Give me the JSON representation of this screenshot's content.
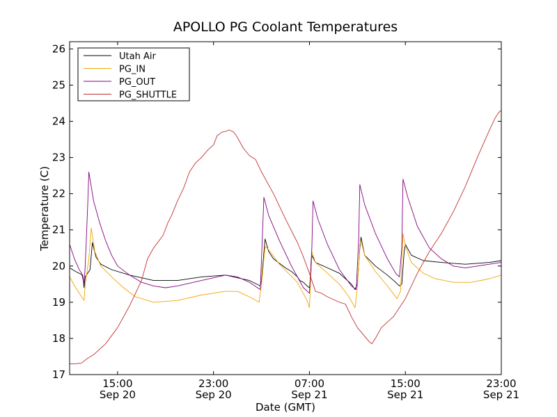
{
  "chart_data": {
    "type": "line",
    "title": "APOLLO PG Coolant Temperatures",
    "xlabel": "Date (GMT)",
    "ylabel": "Temperature (C)",
    "xlim": [
      11.0,
      47.0
    ],
    "ylim": [
      17,
      26.2
    ],
    "yticks": [
      {
        "value": 17,
        "label": "17"
      },
      {
        "value": 18,
        "label": "18"
      },
      {
        "value": 19,
        "label": "19"
      },
      {
        "value": 20,
        "label": "20"
      },
      {
        "value": 21,
        "label": "21"
      },
      {
        "value": 22,
        "label": "22"
      },
      {
        "value": 23,
        "label": "23"
      },
      {
        "value": 24,
        "label": "24"
      },
      {
        "value": 25,
        "label": "25"
      },
      {
        "value": 26,
        "label": "26"
      }
    ],
    "xticks": [
      {
        "value": 15,
        "time": "15:00",
        "date": "Sep 20"
      },
      {
        "value": 23,
        "time": "23:00",
        "date": "Sep 20"
      },
      {
        "value": 31,
        "time": "07:00",
        "date": "Sep 21"
      },
      {
        "value": 39,
        "time": "15:00",
        "date": "Sep 21"
      },
      {
        "value": 47,
        "time": "23:00",
        "date": "Sep 21"
      }
    ],
    "legend_position": "top-left",
    "series": [
      {
        "name": "Utah Air",
        "color": "#000000",
        "points": [
          [
            11.0,
            19.95
          ],
          [
            11.5,
            19.85
          ],
          [
            12.1,
            19.75
          ],
          [
            12.2,
            19.4
          ],
          [
            12.3,
            19.7
          ],
          [
            12.7,
            19.9
          ],
          [
            12.9,
            20.65
          ],
          [
            13.2,
            20.25
          ],
          [
            13.6,
            20.05
          ],
          [
            14.5,
            19.9
          ],
          [
            16.0,
            19.75
          ],
          [
            18.0,
            19.6
          ],
          [
            20.0,
            19.6
          ],
          [
            22.0,
            19.7
          ],
          [
            24.0,
            19.75
          ],
          [
            26.0,
            19.6
          ],
          [
            26.9,
            19.45
          ],
          [
            27.0,
            19.6
          ],
          [
            27.3,
            20.75
          ],
          [
            27.6,
            20.4
          ],
          [
            28.0,
            20.2
          ],
          [
            29.0,
            19.95
          ],
          [
            29.5,
            19.85
          ],
          [
            30.0,
            19.7
          ],
          [
            30.2,
            19.6
          ],
          [
            30.5,
            19.55
          ],
          [
            30.8,
            19.45
          ],
          [
            31.0,
            19.4
          ],
          [
            31.1,
            19.65
          ],
          [
            31.2,
            20.3
          ],
          [
            31.5,
            20.1
          ],
          [
            32.5,
            19.95
          ],
          [
            33.5,
            19.8
          ],
          [
            34.0,
            19.65
          ],
          [
            34.5,
            19.5
          ],
          [
            34.8,
            19.35
          ],
          [
            35.0,
            19.5
          ],
          [
            35.2,
            20.5
          ],
          [
            35.3,
            20.8
          ],
          [
            35.6,
            20.3
          ],
          [
            36.5,
            20.0
          ],
          [
            37.5,
            19.75
          ],
          [
            38.2,
            19.55
          ],
          [
            38.5,
            19.45
          ],
          [
            38.7,
            19.5
          ],
          [
            38.9,
            20.4
          ],
          [
            39.0,
            20.6
          ],
          [
            39.5,
            20.3
          ],
          [
            40.5,
            20.15
          ],
          [
            42.0,
            20.1
          ],
          [
            44.0,
            20.05
          ],
          [
            46.0,
            20.1
          ],
          [
            47.0,
            20.15
          ]
        ]
      },
      {
        "name": "PG_IN",
        "color": "#f0a500",
        "points": [
          [
            11.0,
            19.7
          ],
          [
            11.5,
            19.4
          ],
          [
            12.2,
            19.05
          ],
          [
            12.3,
            19.5
          ],
          [
            12.6,
            20.2
          ],
          [
            12.8,
            21.05
          ],
          [
            13.1,
            20.4
          ],
          [
            13.6,
            20.0
          ],
          [
            14.5,
            19.7
          ],
          [
            15.5,
            19.4
          ],
          [
            16.5,
            19.15
          ],
          [
            18.0,
            19.0
          ],
          [
            20.0,
            19.05
          ],
          [
            22.0,
            19.2
          ],
          [
            24.0,
            19.3
          ],
          [
            25.0,
            19.3
          ],
          [
            26.0,
            19.15
          ],
          [
            26.8,
            19.0
          ],
          [
            27.0,
            19.5
          ],
          [
            27.3,
            20.55
          ],
          [
            27.6,
            20.45
          ],
          [
            28.5,
            20.05
          ],
          [
            30.0,
            19.55
          ],
          [
            30.8,
            19.05
          ],
          [
            31.0,
            18.85
          ],
          [
            31.1,
            19.6
          ],
          [
            31.2,
            20.4
          ],
          [
            31.5,
            20.1
          ],
          [
            32.5,
            19.8
          ],
          [
            33.5,
            19.5
          ],
          [
            34.3,
            19.15
          ],
          [
            34.8,
            18.85
          ],
          [
            35.0,
            19.4
          ],
          [
            35.2,
            20.6
          ],
          [
            35.3,
            20.7
          ],
          [
            35.6,
            20.3
          ],
          [
            36.5,
            19.85
          ],
          [
            37.5,
            19.45
          ],
          [
            38.3,
            19.1
          ],
          [
            38.6,
            19.3
          ],
          [
            38.8,
            20.9
          ],
          [
            39.0,
            20.55
          ],
          [
            39.5,
            20.1
          ],
          [
            40.5,
            19.8
          ],
          [
            41.5,
            19.65
          ],
          [
            43.0,
            19.55
          ],
          [
            44.5,
            19.55
          ],
          [
            46.0,
            19.65
          ],
          [
            47.0,
            19.75
          ]
        ]
      },
      {
        "name": "PG_OUT",
        "color": "#800080",
        "points": [
          [
            11.0,
            20.6
          ],
          [
            11.4,
            20.2
          ],
          [
            11.8,
            19.9
          ],
          [
            12.0,
            19.8
          ],
          [
            12.2,
            19.5
          ],
          [
            12.3,
            20.0
          ],
          [
            12.5,
            21.6
          ],
          [
            12.6,
            22.6
          ],
          [
            13.0,
            21.8
          ],
          [
            13.5,
            21.2
          ],
          [
            14.0,
            20.7
          ],
          [
            14.5,
            20.3
          ],
          [
            15.0,
            20.0
          ],
          [
            16.0,
            19.75
          ],
          [
            17.0,
            19.55
          ],
          [
            18.0,
            19.45
          ],
          [
            19.0,
            19.4
          ],
          [
            20.0,
            19.45
          ],
          [
            22.0,
            19.6
          ],
          [
            24.0,
            19.75
          ],
          [
            25.0,
            19.7
          ],
          [
            26.0,
            19.55
          ],
          [
            26.9,
            19.35
          ],
          [
            27.0,
            20.2
          ],
          [
            27.2,
            21.9
          ],
          [
            27.6,
            21.4
          ],
          [
            28.5,
            20.7
          ],
          [
            29.5,
            20.0
          ],
          [
            30.5,
            19.4
          ],
          [
            31.0,
            19.25
          ],
          [
            31.2,
            20.5
          ],
          [
            31.3,
            21.8
          ],
          [
            31.7,
            21.3
          ],
          [
            32.5,
            20.6
          ],
          [
            33.5,
            19.9
          ],
          [
            34.5,
            19.45
          ],
          [
            34.9,
            19.35
          ],
          [
            35.1,
            20.7
          ],
          [
            35.2,
            22.25
          ],
          [
            35.6,
            21.7
          ],
          [
            36.5,
            20.9
          ],
          [
            37.5,
            20.2
          ],
          [
            38.2,
            19.8
          ],
          [
            38.5,
            19.7
          ],
          [
            38.7,
            20.5
          ],
          [
            38.8,
            22.4
          ],
          [
            39.2,
            21.9
          ],
          [
            40.0,
            21.1
          ],
          [
            41.0,
            20.5
          ],
          [
            42.0,
            20.2
          ],
          [
            43.0,
            20.0
          ],
          [
            44.0,
            19.95
          ],
          [
            45.0,
            20.0
          ],
          [
            46.0,
            20.05
          ],
          [
            47.0,
            20.1
          ]
        ]
      },
      {
        "name": "PG_SHUTTLE",
        "color": "#c03030",
        "points": [
          [
            11.0,
            17.3
          ],
          [
            11.5,
            17.3
          ],
          [
            12.0,
            17.32
          ],
          [
            12.5,
            17.45
          ],
          [
            13.0,
            17.55
          ],
          [
            14.0,
            17.85
          ],
          [
            15.0,
            18.3
          ],
          [
            16.0,
            18.9
          ],
          [
            17.0,
            19.6
          ],
          [
            17.5,
            20.2
          ],
          [
            18.0,
            20.5
          ],
          [
            18.8,
            20.85
          ],
          [
            19.2,
            21.2
          ],
          [
            19.5,
            21.4
          ],
          [
            20.0,
            21.8
          ],
          [
            20.5,
            22.15
          ],
          [
            21.0,
            22.6
          ],
          [
            21.5,
            22.85
          ],
          [
            22.0,
            23.0
          ],
          [
            22.5,
            23.2
          ],
          [
            23.0,
            23.35
          ],
          [
            23.3,
            23.6
          ],
          [
            23.7,
            23.7
          ],
          [
            24.0,
            23.72
          ],
          [
            24.3,
            23.76
          ],
          [
            24.7,
            23.7
          ],
          [
            25.0,
            23.55
          ],
          [
            25.5,
            23.25
          ],
          [
            26.0,
            23.05
          ],
          [
            26.5,
            22.95
          ],
          [
            27.0,
            22.6
          ],
          [
            28.0,
            22.0
          ],
          [
            29.0,
            21.3
          ],
          [
            30.0,
            20.65
          ],
          [
            30.5,
            20.25
          ],
          [
            31.0,
            19.8
          ],
          [
            31.5,
            19.3
          ],
          [
            32.0,
            19.25
          ],
          [
            32.5,
            19.15
          ],
          [
            33.5,
            19.0
          ],
          [
            34.0,
            18.95
          ],
          [
            34.5,
            18.6
          ],
          [
            35.0,
            18.3
          ],
          [
            35.5,
            18.1
          ],
          [
            36.0,
            17.9
          ],
          [
            36.2,
            17.85
          ],
          [
            36.5,
            18.0
          ],
          [
            37.0,
            18.3
          ],
          [
            38.0,
            18.6
          ],
          [
            39.0,
            19.1
          ],
          [
            40.0,
            19.8
          ],
          [
            41.0,
            20.4
          ],
          [
            42.0,
            20.9
          ],
          [
            43.0,
            21.5
          ],
          [
            44.0,
            22.2
          ],
          [
            45.0,
            23.0
          ],
          [
            46.0,
            23.75
          ],
          [
            46.5,
            24.1
          ],
          [
            46.8,
            24.25
          ],
          [
            47.0,
            24.3
          ]
        ]
      }
    ]
  }
}
